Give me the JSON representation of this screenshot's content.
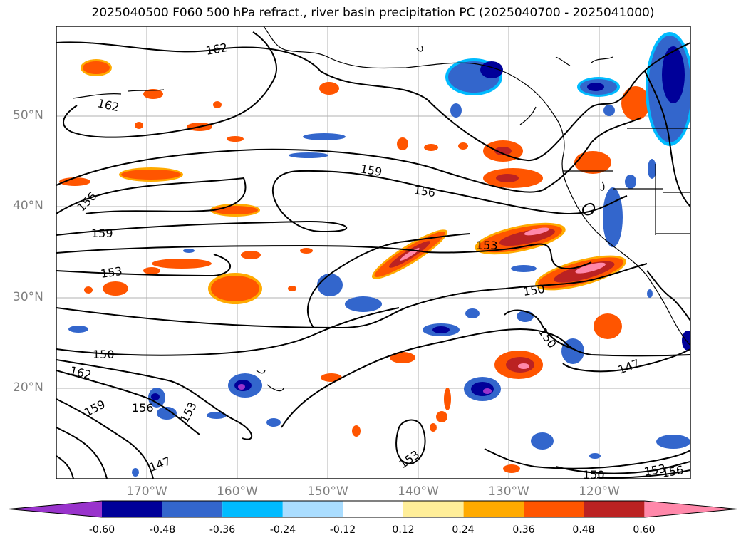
{
  "title": "2025040500 F060 500 hPa refract., river basin precipitation PC (2025040700 - 2025041000)",
  "map": {
    "lat_labels": [
      "50°N",
      "40°N",
      "30°N",
      "20°N"
    ],
    "lon_labels": [
      "170°W",
      "160°W",
      "150°W",
      "140°W",
      "130°W",
      "120°W"
    ],
    "contour_labels": [
      "162",
      "162",
      "159",
      "156",
      "156",
      "159",
      "153",
      "153",
      "150",
      "150",
      "150",
      "147",
      "162",
      "159",
      "156",
      "153",
      "147",
      "153",
      "150",
      "153",
      "156"
    ],
    "contour_color": "#000000",
    "gridline_color": "#b0b0b0",
    "coastline_color": "#000000"
  },
  "colorbar": {
    "ticks": [
      "-0.60",
      "-0.48",
      "-0.36",
      "-0.24",
      "-0.12",
      "0.12",
      "0.24",
      "0.36",
      "0.48",
      "0.60"
    ],
    "colors": [
      "#9933cc",
      "#000099",
      "#3366cc",
      "#00bbff",
      "#aaddff",
      "#ffffff",
      "#ffee99",
      "#ffaa00",
      "#ff5500",
      "#bb2222",
      "#ff88aa"
    ]
  }
}
